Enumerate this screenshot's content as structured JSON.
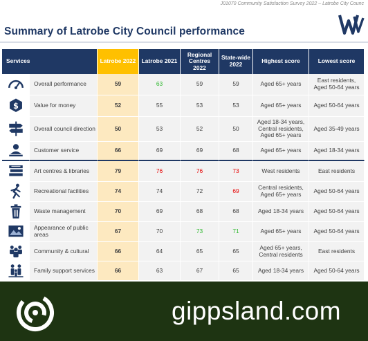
{
  "header": {
    "report_note": "J01070 Community Satisfaction Survey 2022 – Latrobe City Counc",
    "title": "Summary of Latrobe City Council performance"
  },
  "table": {
    "columns": [
      "Services",
      "Latrobe 2022",
      "Latrobe 2021",
      "Regional Centres 2022",
      "State-wide 2022",
      "Highest score",
      "Lowest score"
    ],
    "rows": [
      {
        "icon": "speedometer-icon",
        "service": "Overall performance",
        "latrobe_2022": "59",
        "latrobe_2021": "63",
        "latrobe_2021_color": "green",
        "regional": "59",
        "regional_color": "",
        "statewide": "59",
        "statewide_color": "",
        "highest": "Aged 65+ years",
        "lowest": "East residents, Aged 50-64 years"
      },
      {
        "icon": "dollar-icon",
        "service": "Value for money",
        "latrobe_2022": "52",
        "latrobe_2021": "55",
        "latrobe_2021_color": "",
        "regional": "53",
        "regional_color": "",
        "statewide": "53",
        "statewide_color": "",
        "highest": "Aged 65+ years",
        "lowest": "Aged 50-64 years"
      },
      {
        "icon": "signpost-icon",
        "service": "Overall council direction",
        "latrobe_2022": "50",
        "latrobe_2021": "53",
        "latrobe_2021_color": "",
        "regional": "52",
        "regional_color": "",
        "statewide": "50",
        "statewide_color": "",
        "highest": "Aged 18-34 years, Central residents, Aged 65+ years",
        "lowest": "Aged 35-49 years"
      },
      {
        "icon": "customer-service-icon",
        "service": "Customer service",
        "latrobe_2022": "66",
        "latrobe_2021": "69",
        "latrobe_2021_color": "",
        "regional": "69",
        "regional_color": "",
        "statewide": "68",
        "statewide_color": "",
        "highest": "Aged 65+ years",
        "lowest": "Aged 18-34 years"
      },
      {
        "icon": "books-icon",
        "service": "Art centres & libraries",
        "latrobe_2022": "79",
        "latrobe_2021": "76",
        "latrobe_2021_color": "red",
        "regional": "76",
        "regional_color": "red",
        "statewide": "73",
        "statewide_color": "red",
        "highest": "West residents",
        "lowest": "East residents"
      },
      {
        "icon": "runner-icon",
        "service": "Recreational facilities",
        "latrobe_2022": "74",
        "latrobe_2021": "74",
        "latrobe_2021_color": "",
        "regional": "72",
        "regional_color": "",
        "statewide": "69",
        "statewide_color": "red",
        "highest": "Central residents, Aged 65+ years",
        "lowest": "Aged 50-64 years"
      },
      {
        "icon": "bin-icon",
        "service": "Waste management",
        "latrobe_2022": "70",
        "latrobe_2021": "69",
        "latrobe_2021_color": "",
        "regional": "68",
        "regional_color": "",
        "statewide": "68",
        "statewide_color": "",
        "highest": "Aged 18-34 years",
        "lowest": "Aged 50-64 years"
      },
      {
        "icon": "landscape-icon",
        "service": "Appearance of public areas",
        "latrobe_2022": "67",
        "latrobe_2021": "70",
        "latrobe_2021_color": "",
        "regional": "73",
        "regional_color": "green",
        "statewide": "71",
        "statewide_color": "green",
        "highest": "Aged 65+ years",
        "lowest": "Aged 50-64 years"
      },
      {
        "icon": "community-icon",
        "service": "Community & cultural",
        "latrobe_2022": "66",
        "latrobe_2021": "64",
        "latrobe_2021_color": "",
        "regional": "65",
        "regional_color": "",
        "statewide": "65",
        "statewide_color": "",
        "highest": "Aged 65+ years, Central residents",
        "lowest": "East residents"
      },
      {
        "icon": "family-icon",
        "service": "Family support services",
        "latrobe_2022": "66",
        "latrobe_2021": "63",
        "latrobe_2021_color": "",
        "regional": "67",
        "regional_color": "",
        "statewide": "65",
        "statewide_color": "",
        "highest": "Aged 18-34 years",
        "lowest": "Aged 50-64 years"
      }
    ]
  },
  "colors": {
    "navy": "#1f3864",
    "latrobe_accent": "#ffc000",
    "latrobe_cell": "#fde9c0",
    "green": "#2eb82e",
    "red": "#e60000",
    "footer_bg": "#1e3412"
  },
  "footer": {
    "brand": "gippsland.com",
    "logo_icon": "gippsland-swirl-logo"
  }
}
